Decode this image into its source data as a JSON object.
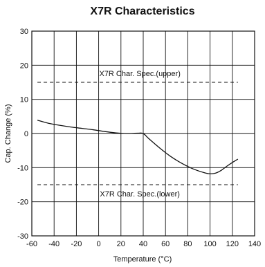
{
  "chart_data": {
    "type": "line",
    "title": "X7R Characteristics",
    "xlabel": "Temperature (°C)",
    "ylabel": "Cap. Change (%)",
    "xlim": [
      -60,
      140
    ],
    "ylim": [
      -30,
      30
    ],
    "xticks": [
      -60,
      -40,
      -20,
      0,
      20,
      40,
      60,
      80,
      100,
      120,
      140
    ],
    "yticks": [
      30,
      20,
      10,
      0,
      -10,
      -20,
      -30
    ],
    "grid": true,
    "series": [
      {
        "x": [
          -55,
          -45,
          -35,
          -25,
          -15,
          -5,
          5,
          15,
          25,
          35,
          40,
          45,
          55,
          65,
          75,
          85,
          95,
          100,
          105,
          110,
          115,
          120,
          125
        ],
        "y": [
          3.9,
          3.0,
          2.4,
          1.9,
          1.5,
          1.1,
          0.6,
          0.2,
          0.0,
          0.1,
          0.0,
          -1.5,
          -4.3,
          -6.8,
          -8.8,
          -10.4,
          -11.5,
          -11.8,
          -11.6,
          -10.8,
          -9.6,
          -8.5,
          -7.5
        ],
        "color": "#111111"
      }
    ],
    "reference_lines": [
      {
        "label": "X7R Char. Spec.(upper)",
        "y": 15,
        "x_range": [
          -55,
          125
        ],
        "style": "dashed"
      },
      {
        "label": "X7R Char. Spec.(lower)",
        "y": -15,
        "x_range": [
          -55,
          125
        ],
        "style": "dashed"
      }
    ]
  }
}
